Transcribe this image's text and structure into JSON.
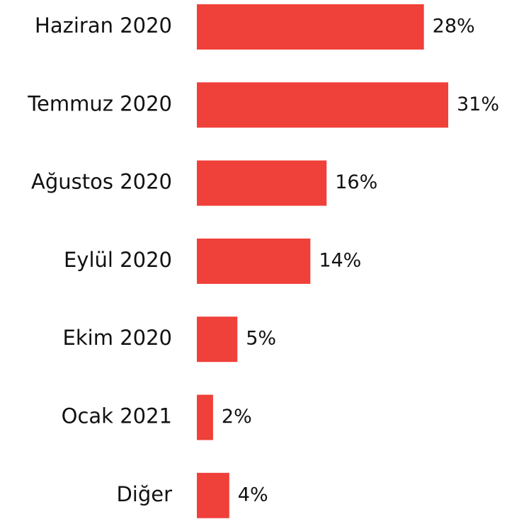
{
  "chart_data": {
    "type": "bar",
    "orientation": "horizontal",
    "categories": [
      "Haziran 2020",
      "Temmuz 2020",
      "Ağustos 2020",
      "Eylül 2020",
      "Ekim 2020",
      "Ocak 2021",
      "Diğer"
    ],
    "values": [
      28,
      31,
      16,
      14,
      5,
      2,
      4
    ],
    "value_labels": [
      "28%",
      "31%",
      "16%",
      "14%",
      "5%",
      "2%",
      "4%"
    ],
    "color": "#f0403a"
  }
}
